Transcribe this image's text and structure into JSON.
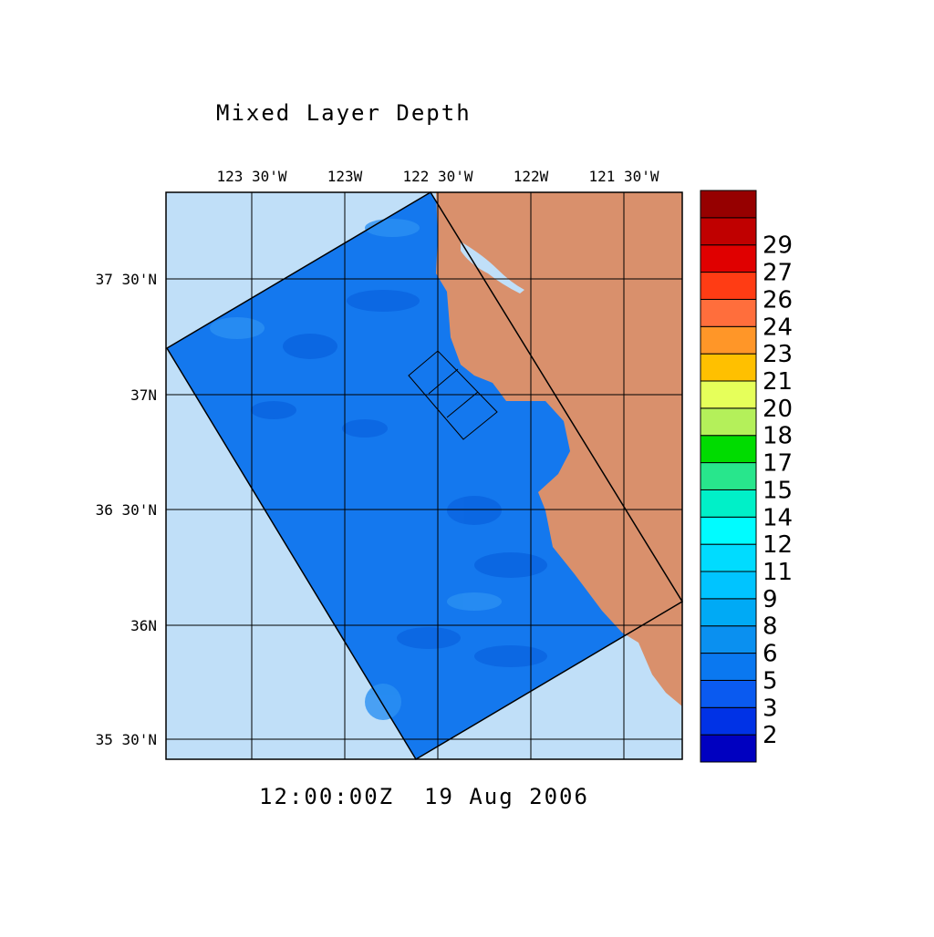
{
  "title": "Mixed Layer Depth",
  "lon_labels": [
    "123 30'W",
    "123W",
    "122 30'W",
    "122W",
    "121 30'W"
  ],
  "lat_labels": [
    "37 30'N",
    "37N",
    "36 30'N",
    "36N",
    "35 30'N"
  ],
  "time": "12:00:00Z  19 Aug 2006",
  "colorbar": {
    "colors": [
      "#0000c0",
      "#0032e6",
      "#0a5af0",
      "#0a78f0",
      "#0a90f0",
      "#00aaf5",
      "#00c4ff",
      "#00dcff",
      "#00fcff",
      "#00f0c8",
      "#28e68c",
      "#00dc00",
      "#b4f05a",
      "#e6ff5a",
      "#ffc000",
      "#ff9628",
      "#ff6e3c",
      "#ff3c14",
      "#e00000",
      "#c00000",
      "#960000"
    ],
    "labels": [
      2,
      3,
      5,
      6,
      8,
      9,
      11,
      12,
      14,
      15,
      17,
      18,
      20,
      21,
      23,
      24,
      26,
      27,
      29
    ]
  }
}
